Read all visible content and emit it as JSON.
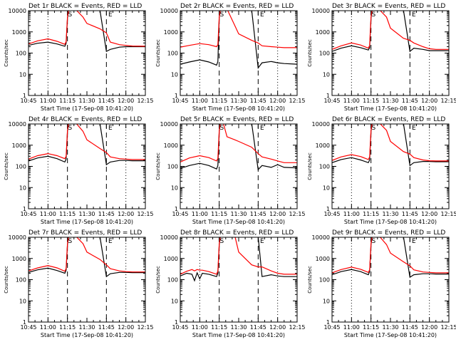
{
  "figure": {
    "background": "#ffffff",
    "axis_color": "#000000",
    "events_color": "#000000",
    "lld_color": "#ff0000"
  },
  "chart_data": [
    {
      "type": "line",
      "title": "Det 1r BLACK = Events, RED = LLD",
      "ylabel": "Counts/sec",
      "xlabel": "Start Time (17-Sep-08 10:41:20)",
      "yscale": "log",
      "ylim": [
        1,
        10000
      ],
      "xlim": [
        "10:45",
        "12:15"
      ],
      "yticks": [
        "1",
        "10",
        "100",
        "1000",
        "10000"
      ],
      "xticks": [
        "10:45",
        "11:00",
        "11:15",
        "11:30",
        "11:45",
        "12:00",
        "12:15"
      ],
      "grid": false,
      "x": [
        "10:45",
        "10:52",
        "11:00",
        "11:07",
        "11:13",
        "11:14",
        "11:15",
        "11:16",
        "11:18",
        "11:21",
        "11:27",
        "11:30",
        "11:40",
        "11:45",
        "11:48",
        "11:55",
        "12:00",
        "12:05",
        "12:15"
      ],
      "series": [
        {
          "name": "BLACK = Events",
          "color": "#000000",
          "values": [
            230,
            290,
            330,
            270,
            210,
            290,
            4500,
            11000,
            11000,
            11000,
            11000,
            11000,
            11000,
            120,
            150,
            190,
            200,
            200,
            200
          ]
        },
        {
          "name": "RED = LLD",
          "color": "#ff0000",
          "values": [
            270,
            380,
            470,
            360,
            260,
            350,
            5000,
            12000,
            12000,
            12000,
            5000,
            2500,
            1400,
            900,
            330,
            250,
            230,
            215,
            210
          ]
        }
      ],
      "markers": {
        "dotted": [
          "11:00",
          "12:00"
        ],
        "dashed": [
          "11:15",
          "11:45"
        ],
        "letters": [
          {
            "text": "S",
            "x": "11:17"
          },
          {
            "text": "E",
            "x": "11:48"
          }
        ]
      }
    },
    {
      "type": "line",
      "title": "Det 2r BLACK = Events, RED = LLD",
      "ylabel": "Counts/sec",
      "xlabel": "Start Time (17-Sep-08 10:41:20)",
      "yscale": "log",
      "ylim": [
        1,
        10000
      ],
      "xlim": [
        "10:45",
        "12:15"
      ],
      "yticks": [
        "1",
        "10",
        "100",
        "1000",
        "10000"
      ],
      "xticks": [
        "10:45",
        "11:00",
        "11:15",
        "11:30",
        "11:45",
        "12:00",
        "12:15"
      ],
      "grid": false,
      "x": [
        "10:45",
        "10:52",
        "11:00",
        "11:07",
        "11:13",
        "11:14",
        "11:15",
        "11:16",
        "11:18",
        "11:21",
        "11:27",
        "11:30",
        "11:40",
        "11:45",
        "11:48",
        "11:55",
        "12:00",
        "12:05",
        "12:15"
      ],
      "series": [
        {
          "name": "BLACK = Events",
          "color": "#000000",
          "values": [
            30,
            38,
            48,
            38,
            27,
            40,
            5000,
            11000,
            11000,
            11000,
            11000,
            11000,
            11000,
            20,
            35,
            40,
            35,
            32,
            30
          ]
        },
        {
          "name": "RED = LLD",
          "color": "#ff0000",
          "values": [
            190,
            230,
            280,
            250,
            200,
            250,
            5000,
            12000,
            12000,
            12000,
            2000,
            800,
            400,
            300,
            220,
            200,
            190,
            180,
            180
          ]
        }
      ],
      "markers": {
        "dotted": [
          "11:00",
          "12:00"
        ],
        "dashed": [
          "11:15",
          "11:45"
        ],
        "letters": [
          {
            "text": "S",
            "x": "11:17"
          },
          {
            "text": "E",
            "x": "11:48"
          }
        ]
      }
    },
    {
      "type": "line",
      "title": "Det 3r BLACK = Events, RED = LLD",
      "ylabel": "Counts/sec",
      "xlabel": "Start Time (17-Sep-08 10:41:20)",
      "yscale": "log",
      "ylim": [
        1,
        10000
      ],
      "xlim": [
        "10:45",
        "12:15"
      ],
      "yticks": [
        "1",
        "10",
        "100",
        "1000",
        "10000"
      ],
      "xticks": [
        "10:45",
        "11:00",
        "11:15",
        "11:30",
        "11:45",
        "12:00",
        "12:15"
      ],
      "grid": false,
      "x": [
        "10:45",
        "10:52",
        "11:00",
        "11:07",
        "11:13",
        "11:14",
        "11:15",
        "11:16",
        "11:18",
        "11:21",
        "11:27",
        "11:30",
        "11:40",
        "11:45",
        "11:48",
        "11:55",
        "12:00",
        "12:05",
        "12:15"
      ],
      "series": [
        {
          "name": "BLACK = Events",
          "color": "#000000",
          "values": [
            120,
            170,
            220,
            180,
            140,
            180,
            4500,
            11000,
            11000,
            11000,
            11000,
            11000,
            11000,
            120,
            170,
            150,
            130,
            130,
            130
          ]
        },
        {
          "name": "RED = LLD",
          "color": "#ff0000",
          "values": [
            150,
            220,
            300,
            240,
            170,
            230,
            5000,
            12000,
            12000,
            12000,
            5000,
            1500,
            500,
            400,
            300,
            200,
            160,
            150,
            150
          ]
        }
      ],
      "markers": {
        "dotted": [
          "11:00",
          "12:00"
        ],
        "dashed": [
          "11:15",
          "11:45"
        ],
        "letters": [
          {
            "text": "S",
            "x": "11:17"
          },
          {
            "text": "E",
            "x": "11:48"
          }
        ]
      }
    },
    {
      "type": "line",
      "title": "Det 4r BLACK = Events, RED = LLD",
      "ylabel": "Counts/sec",
      "xlabel": "Start Time (17-Sep-08 10:41:20)",
      "yscale": "log",
      "ylim": [
        1,
        10000
      ],
      "xlim": [
        "10:45",
        "12:15"
      ],
      "yticks": [
        "1",
        "10",
        "100",
        "1000",
        "10000"
      ],
      "xticks": [
        "10:45",
        "11:00",
        "11:15",
        "11:30",
        "11:45",
        "12:00",
        "12:15"
      ],
      "grid": false,
      "x": [
        "10:45",
        "10:52",
        "11:00",
        "11:07",
        "11:13",
        "11:14",
        "11:15",
        "11:16",
        "11:18",
        "11:21",
        "11:27",
        "11:30",
        "11:40",
        "11:45",
        "11:48",
        "11:55",
        "12:00",
        "12:05",
        "12:15"
      ],
      "series": [
        {
          "name": "BLACK = Events",
          "color": "#000000",
          "values": [
            180,
            250,
            300,
            230,
            160,
            220,
            4500,
            11000,
            11000,
            11000,
            11000,
            11000,
            11000,
            120,
            160,
            190,
            190,
            185,
            185
          ]
        },
        {
          "name": "RED = LLD",
          "color": "#ff0000",
          "values": [
            220,
            320,
            400,
            320,
            230,
            300,
            5000,
            12000,
            12000,
            12000,
            4500,
            1800,
            700,
            450,
            280,
            230,
            220,
            210,
            210
          ]
        }
      ],
      "markers": {
        "dotted": [
          "11:00",
          "12:00"
        ],
        "dashed": [
          "11:15",
          "11:45"
        ],
        "letters": [
          {
            "text": "S",
            "x": "11:17"
          },
          {
            "text": "E",
            "x": "11:48"
          }
        ]
      }
    },
    {
      "type": "line",
      "title": "Det 5r BLACK = Events, RED = LLD",
      "ylabel": "Counts/sec",
      "xlabel": "Start Time (17-Sep-08 10:41:20)",
      "yscale": "log",
      "ylim": [
        1,
        10000
      ],
      "xlim": [
        "10:45",
        "12:15"
      ],
      "yticks": [
        "1",
        "10",
        "100",
        "1000",
        "10000"
      ],
      "xticks": [
        "10:45",
        "11:00",
        "11:15",
        "11:30",
        "11:45",
        "12:00",
        "12:15"
      ],
      "grid": false,
      "x": [
        "10:45",
        "10:52",
        "11:00",
        "11:07",
        "11:13",
        "11:14",
        "11:15",
        "11:16",
        "11:18",
        "11:21",
        "11:27",
        "11:30",
        "11:40",
        "11:45",
        "11:48",
        "11:55",
        "12:00",
        "12:05",
        "12:15"
      ],
      "series": [
        {
          "name": "BLACK = Events",
          "color": "#000000",
          "values": [
            80,
            110,
            140,
            110,
            75,
            110,
            4500,
            11000,
            11000,
            11000,
            11000,
            11000,
            11000,
            70,
            110,
            90,
            120,
            90,
            85
          ]
        },
        {
          "name": "RED = LLD",
          "color": "#ff0000",
          "values": [
            160,
            250,
            320,
            260,
            180,
            240,
            5000,
            12000,
            12000,
            2500,
            1800,
            1500,
            800,
            400,
            280,
            220,
            180,
            150,
            150
          ]
        }
      ],
      "markers": {
        "dotted": [
          "11:00",
          "12:00"
        ],
        "dashed": [
          "11:15",
          "11:45"
        ],
        "letters": [
          {
            "text": "S",
            "x": "11:17"
          },
          {
            "text": "E",
            "x": "11:48"
          }
        ]
      }
    },
    {
      "type": "line",
      "title": "Det 6r BLACK = Events, RED = LLD",
      "ylabel": "Counts/sec",
      "xlabel": "Start Time (17-Sep-08 10:41:20)",
      "yscale": "log",
      "ylim": [
        1,
        10000
      ],
      "xlim": [
        "10:45",
        "12:15"
      ],
      "yticks": [
        "1",
        "10",
        "100",
        "1000",
        "10000"
      ],
      "xticks": [
        "10:45",
        "11:00",
        "11:15",
        "11:30",
        "11:45",
        "12:00",
        "12:15"
      ],
      "grid": false,
      "x": [
        "10:45",
        "10:52",
        "11:00",
        "11:07",
        "11:13",
        "11:14",
        "11:15",
        "11:16",
        "11:18",
        "11:21",
        "11:27",
        "11:30",
        "11:40",
        "11:45",
        "11:48",
        "11:55",
        "12:00",
        "12:05",
        "12:15"
      ],
      "series": [
        {
          "name": "BLACK = Events",
          "color": "#000000",
          "values": [
            150,
            210,
            260,
            200,
            150,
            200,
            4500,
            11000,
            11000,
            11000,
            11000,
            11000,
            11000,
            110,
            150,
            170,
            170,
            165,
            165
          ]
        },
        {
          "name": "RED = LLD",
          "color": "#ff0000",
          "values": [
            190,
            280,
            360,
            290,
            210,
            280,
            5000,
            12000,
            12000,
            12000,
            5000,
            1500,
            500,
            380,
            260,
            200,
            185,
            180,
            180
          ]
        }
      ],
      "markers": {
        "dotted": [
          "11:00",
          "12:00"
        ],
        "dashed": [
          "11:15",
          "11:45"
        ],
        "letters": [
          {
            "text": "S",
            "x": "11:17"
          },
          {
            "text": "E",
            "x": "11:48"
          }
        ]
      }
    },
    {
      "type": "line",
      "title": "Det 7r BLACK = Events, RED = LLD",
      "ylabel": "Counts/sec",
      "xlabel": "Start Time (17-Sep-08 10:41:20)",
      "yscale": "log",
      "ylim": [
        1,
        10000
      ],
      "xlim": [
        "10:45",
        "12:15"
      ],
      "yticks": [
        "1",
        "10",
        "100",
        "1000",
        "10000"
      ],
      "xticks": [
        "10:45",
        "11:00",
        "11:15",
        "11:30",
        "11:45",
        "12:00",
        "12:15"
      ],
      "grid": false,
      "x": [
        "10:45",
        "10:52",
        "11:00",
        "11:07",
        "11:13",
        "11:14",
        "11:15",
        "11:16",
        "11:18",
        "11:21",
        "11:27",
        "11:30",
        "11:40",
        "11:45",
        "11:48",
        "11:55",
        "12:00",
        "12:05",
        "12:15"
      ],
      "series": [
        {
          "name": "BLACK = Events",
          "color": "#000000",
          "values": [
            220,
            290,
            350,
            270,
            200,
            280,
            4500,
            11000,
            11000,
            11000,
            11000,
            11000,
            11000,
            140,
            190,
            220,
            220,
            215,
            215
          ]
        },
        {
          "name": "RED = LLD",
          "color": "#ff0000",
          "values": [
            260,
            360,
            460,
            360,
            250,
            340,
            5000,
            12000,
            12000,
            12000,
            5000,
            2000,
            900,
            500,
            330,
            260,
            240,
            230,
            230
          ]
        }
      ],
      "markers": {
        "dotted": [
          "11:00",
          "12:00"
        ],
        "dashed": [
          "11:15",
          "11:45"
        ],
        "letters": [
          {
            "text": "S",
            "x": "11:17"
          },
          {
            "text": "E",
            "x": "11:48"
          }
        ]
      }
    },
    {
      "type": "line",
      "title": "Det 8r BLACK = Events, RED = LLD",
      "ylabel": "Counts/sec",
      "xlabel": "Start Time (17-Sep-08 10:41:20)",
      "yscale": "log",
      "ylim": [
        1,
        10000
      ],
      "xlim": [
        "10:45",
        "12:15"
      ],
      "yticks": [
        "1",
        "10",
        "100",
        "1000",
        "10000"
      ],
      "xticks": [
        "10:45",
        "11:00",
        "11:15",
        "11:30",
        "11:45",
        "12:00",
        "12:15"
      ],
      "grid": false,
      "x": [
        "10:45",
        "10:50",
        "10:54",
        "10:56",
        "10:58",
        "11:00",
        "11:02",
        "11:07",
        "11:13",
        "11:14",
        "11:15",
        "11:16",
        "11:18",
        "11:21",
        "11:27",
        "11:30",
        "11:40",
        "11:45",
        "11:48",
        "11:55",
        "12:00",
        "12:05",
        "12:15"
      ],
      "series": [
        {
          "name": "BLACK = Events",
          "color": "#000000",
          "values": [
            150,
            200,
            180,
            90,
            210,
            110,
            200,
            180,
            140,
            200,
            4500,
            11000,
            11000,
            11000,
            11000,
            11000,
            11000,
            11000,
            140,
            170,
            150,
            140,
            140
          ]
        },
        {
          "name": "RED = LLD",
          "color": "#ff0000",
          "values": [
            180,
            250,
            300,
            260,
            300,
            280,
            280,
            240,
            180,
            260,
            5000,
            12000,
            12000,
            12000,
            12000,
            2000,
            500,
            400,
            400,
            260,
            200,
            180,
            180
          ]
        }
      ],
      "markers": {
        "dotted": [
          "11:00",
          "12:00"
        ],
        "dashed": [
          "11:15",
          "11:45"
        ],
        "letters": [
          {
            "text": "S",
            "x": "11:17"
          },
          {
            "text": "E",
            "x": "11:48"
          }
        ]
      }
    },
    {
      "type": "line",
      "title": "Det 9r BLACK = Events, RED = LLD",
      "ylabel": "Counts/sec",
      "xlabel": "Start Time (17-Sep-08 10:41:20)",
      "yscale": "log",
      "ylim": [
        1,
        10000
      ],
      "xlim": [
        "10:45",
        "12:15"
      ],
      "yticks": [
        "1",
        "10",
        "100",
        "1000",
        "10000"
      ],
      "xticks": [
        "10:45",
        "11:00",
        "11:15",
        "11:30",
        "11:45",
        "12:00",
        "12:15"
      ],
      "grid": false,
      "x": [
        "10:45",
        "10:52",
        "11:00",
        "11:07",
        "11:13",
        "11:14",
        "11:15",
        "11:16",
        "11:18",
        "11:21",
        "11:27",
        "11:30",
        "11:40",
        "11:45",
        "11:48",
        "11:55",
        "12:00",
        "12:05",
        "12:15"
      ],
      "series": [
        {
          "name": "BLACK = Events",
          "color": "#000000",
          "values": [
            170,
            240,
            300,
            240,
            170,
            240,
            4500,
            11000,
            11000,
            11000,
            11000,
            11000,
            11000,
            130,
            170,
            190,
            190,
            185,
            185
          ]
        },
        {
          "name": "RED = LLD",
          "color": "#ff0000",
          "values": [
            210,
            300,
            390,
            310,
            220,
            290,
            5000,
            12000,
            12000,
            12000,
            4500,
            1800,
            700,
            450,
            290,
            230,
            220,
            210,
            210
          ]
        }
      ],
      "markers": {
        "dotted": [
          "11:00",
          "12:00"
        ],
        "dashed": [
          "11:15",
          "11:45"
        ],
        "letters": [
          {
            "text": "S",
            "x": "11:17"
          },
          {
            "text": "E",
            "x": "11:48"
          }
        ]
      }
    }
  ]
}
